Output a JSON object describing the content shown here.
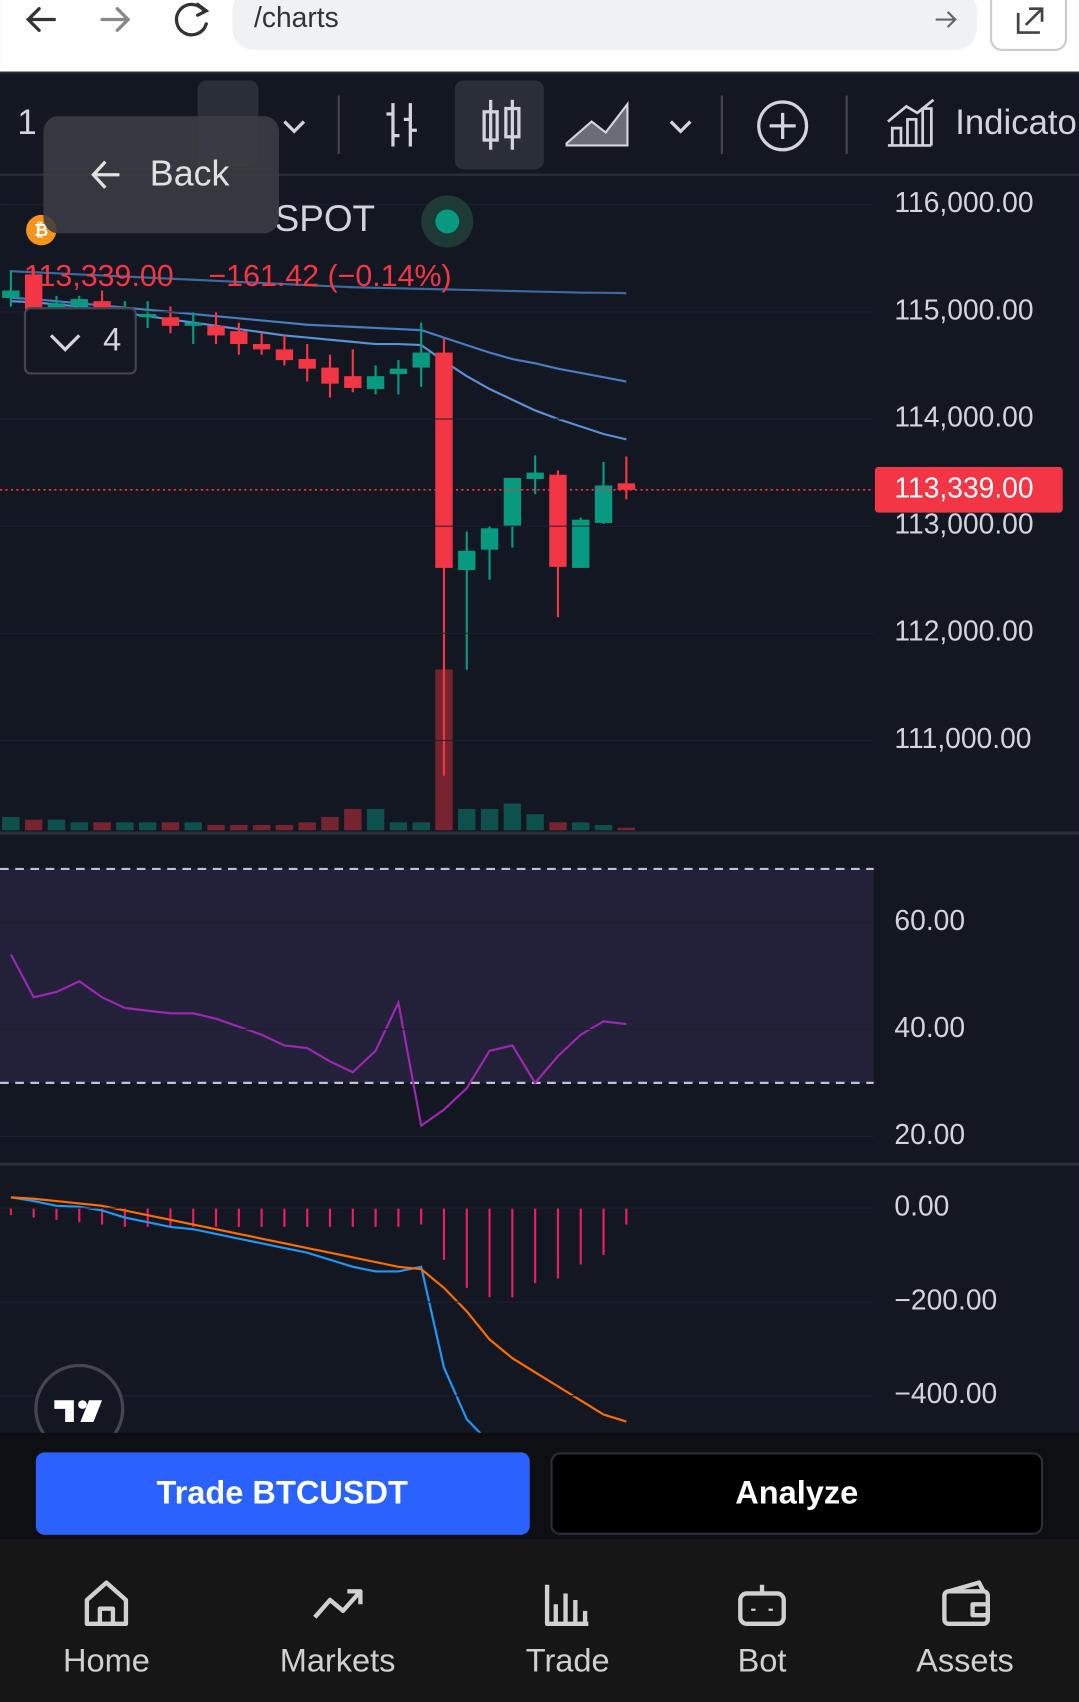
{
  "browser": {
    "url": "/charts"
  },
  "toolbar": {
    "interval": "1",
    "indicators": "Indicators",
    "back": "Back",
    "indicator_count": "4"
  },
  "symbol": {
    "name": "SPOT",
    "price": "113,339.00",
    "change": "−161.42 (−0.14%)"
  },
  "chart_data": [
    {
      "type": "candlestick",
      "open": [
        115130,
        115350,
        115000,
        115050,
        115100,
        114900,
        114950,
        114950,
        114870,
        114870,
        114820,
        114700,
        114650,
        114560,
        114480,
        114400,
        114280,
        114420,
        114480,
        114620,
        112590,
        112780,
        113000,
        113440,
        113480,
        112610,
        113030,
        113400
      ],
      "high": [
        115390,
        115420,
        115150,
        115150,
        115200,
        115100,
        115100,
        115050,
        115000,
        115000,
        114900,
        114800,
        114780,
        114700,
        114600,
        114650,
        114500,
        114550,
        114900,
        114750,
        112950,
        113000,
        113450,
        113660,
        113520,
        113080,
        113600,
        113650
      ],
      "low": [
        115050,
        114950,
        114900,
        114950,
        114900,
        114850,
        114850,
        114800,
        114700,
        114700,
        114600,
        114600,
        114500,
        114350,
        114200,
        114250,
        114230,
        114230,
        114300,
        110670,
        111660,
        112500,
        112800,
        113300,
        112150,
        112610,
        113020,
        113250
      ],
      "close": [
        115200,
        114960,
        115080,
        115120,
        114950,
        114980,
        114980,
        114870,
        114900,
        114780,
        114700,
        114650,
        114550,
        114470,
        114330,
        114290,
        114400,
        114470,
        114620,
        112610,
        112770,
        112980,
        113450,
        113500,
        112620,
        113060,
        113380,
        113339
      ],
      "up_color": "#089981",
      "down_color": "#f23645",
      "volume": [
        5,
        4,
        4,
        3,
        3,
        3,
        3,
        3,
        3,
        2,
        2,
        2,
        2,
        3,
        5,
        8,
        8,
        3,
        3,
        60,
        8,
        8,
        10,
        6,
        3,
        3,
        2,
        1
      ],
      "ma": [
        {
          "color": "#3d6a9c",
          "values": [
            115380,
            115370,
            115360,
            115350,
            115340,
            115330,
            115320,
            115310,
            115300,
            115290,
            115280,
            115270,
            115260,
            115250,
            115240,
            115230,
            115225,
            115220,
            115215,
            115210,
            115205,
            115200,
            115195,
            115190,
            115185,
            115180,
            115178,
            115175
          ]
        },
        {
          "color": "#4a7cc0",
          "values": [
            115130,
            115120,
            115100,
            115080,
            115060,
            115040,
            115020,
            115000,
            114980,
            114960,
            114940,
            114920,
            114900,
            114880,
            114870,
            114860,
            114850,
            114840,
            114830,
            114760,
            114690,
            114620,
            114560,
            114520,
            114470,
            114430,
            114390,
            114350
          ]
        },
        {
          "color": "#5b8fd6",
          "values": [
            115100,
            115090,
            115070,
            115050,
            115020,
            114990,
            114960,
            114930,
            114900,
            114870,
            114840,
            114810,
            114780,
            114760,
            114740,
            114720,
            114700,
            114700,
            114690,
            114540,
            114400,
            114280,
            114180,
            114080,
            114000,
            113930,
            113860,
            113810
          ]
        }
      ],
      "last_price": {
        "value": 113339,
        "label": "113,339.00"
      },
      "ylim": [
        110160,
        116270
      ],
      "yticks": [
        {
          "value": 116000,
          "label": "116,000.00"
        },
        {
          "value": 115000,
          "label": "115,000.00"
        },
        {
          "value": 114000,
          "label": "114,000.00"
        },
        {
          "value": 113000,
          "label": "113,000.00"
        },
        {
          "value": 112000,
          "label": "112,000.00"
        },
        {
          "value": 111000,
          "label": "111,000.00"
        }
      ]
    },
    {
      "type": "line",
      "series": [
        {
          "name": "RSI",
          "color": "#9c27b0",
          "values": [
            54,
            46,
            47,
            49,
            46,
            44,
            43.5,
            43,
            43,
            42,
            40.5,
            39,
            37,
            36.5,
            34,
            32,
            36,
            45,
            22,
            25,
            29,
            36,
            37,
            30,
            35,
            39,
            41.5,
            41
          ]
        }
      ],
      "band": [
        30,
        70
      ],
      "ylim": [
        14.9,
        76.2
      ],
      "yticks": [
        {
          "value": 60,
          "label": "60.00"
        },
        {
          "value": 40,
          "label": "40.00"
        },
        {
          "value": 20,
          "label": "20.00"
        }
      ]
    },
    {
      "type": "macd",
      "series": [
        {
          "name": "MACD",
          "color": "#2196f3",
          "values": [
            23,
            15,
            5,
            3,
            -5,
            -20,
            -30,
            -40,
            -45,
            -55,
            -65,
            -75,
            -85,
            -95,
            -110,
            -125,
            -135,
            -135,
            -125,
            -340,
            -450,
            -500,
            -520,
            -530,
            -530,
            -520,
            -510,
            -500
          ]
        },
        {
          "name": "Signal",
          "color": "#ff6d00",
          "values": [
            23,
            20,
            15,
            10,
            5,
            -5,
            -15,
            -25,
            -35,
            -45,
            -55,
            -65,
            -75,
            -85,
            -95,
            -105,
            -115,
            -125,
            -130,
            -170,
            -220,
            -280,
            -320,
            -350,
            -380,
            -410,
            -440,
            -455
          ]
        }
      ],
      "histogram": {
        "color": "#e91e63",
        "values": [
          -15,
          -20,
          -25,
          -30,
          -35,
          -40,
          -40,
          -40,
          -40,
          -40,
          -40,
          -40,
          -40,
          -40,
          -40,
          -40,
          -40,
          -40,
          -35,
          -110,
          -170,
          -190,
          -190,
          -160,
          -150,
          -120,
          -100,
          -35
        ]
      },
      "ylim": [
        -479,
        88
      ],
      "yticks": [
        {
          "value": 0,
          "label": "0.00"
        },
        {
          "value": -200,
          "label": "−200.00"
        },
        {
          "value": -400,
          "label": "−400.00"
        }
      ]
    }
  ],
  "actions": {
    "trade": "Trade BTCUSDT",
    "analyze": "Analyze"
  },
  "nav": [
    "Home",
    "Markets",
    "Trade",
    "Bot",
    "Assets"
  ]
}
